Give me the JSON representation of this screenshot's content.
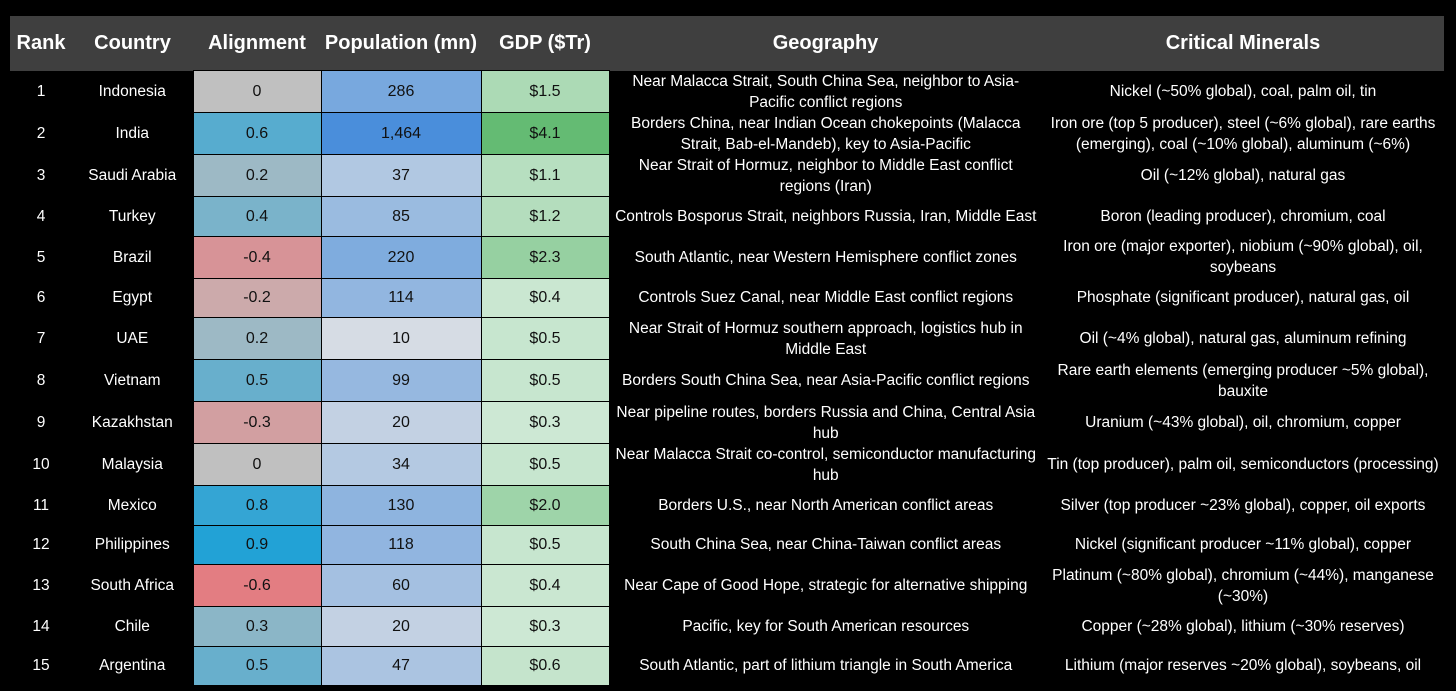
{
  "headers": {
    "rank": "Rank",
    "country": "Country",
    "alignment": "Alignment",
    "population": "Population (mn)",
    "gdp": "GDP ($Tr)",
    "geography": "Geography",
    "minerals": "Critical Minerals"
  },
  "rows": [
    {
      "rank": "1",
      "country": "Indonesia",
      "alignment": "0",
      "population": "286",
      "gdp": "$1.5",
      "geography": "Near Malacca Strait, South China Sea, neighbor to Asia-Pacific conflict regions",
      "minerals": "Nickel (~50% global), coal, palm oil, tin",
      "alignment_value": 0,
      "population_value": 286,
      "gdp_value": 1.5
    },
    {
      "rank": "2",
      "country": "India",
      "alignment": "0.6",
      "population": "1,464",
      "gdp": "$4.1",
      "geography": "Borders China, near Indian Ocean chokepoints (Malacca Strait, Bab-el-Mandeb), key to Asia-Pacific",
      "minerals": "Iron ore (top 5 producer), steel (~6% global), rare earths (emerging), coal (~10% global), aluminum (~6%)",
      "alignment_value": 0.6,
      "population_value": 1464,
      "gdp_value": 4.1
    },
    {
      "rank": "3",
      "country": "Saudi Arabia",
      "alignment": "0.2",
      "population": "37",
      "gdp": "$1.1",
      "geography": "Near Strait of Hormuz, neighbor to Middle East conflict regions (Iran)",
      "minerals": "Oil (~12% global), natural gas",
      "alignment_value": 0.2,
      "population_value": 37,
      "gdp_value": 1.1
    },
    {
      "rank": "4",
      "country": "Turkey",
      "alignment": "0.4",
      "population": "85",
      "gdp": "$1.2",
      "geography": "Controls Bosporus Strait, neighbors Russia, Iran, Middle East",
      "minerals": "Boron (leading producer), chromium, coal",
      "alignment_value": 0.4,
      "population_value": 85,
      "gdp_value": 1.2
    },
    {
      "rank": "5",
      "country": "Brazil",
      "alignment": "-0.4",
      "population": "220",
      "gdp": "$2.3",
      "geography": "South Atlantic, near Western Hemisphere conflict zones",
      "minerals": "Iron ore (major exporter), niobium (~90% global), oil, soybeans",
      "alignment_value": -0.4,
      "population_value": 220,
      "gdp_value": 2.3
    },
    {
      "rank": "6",
      "country": "Egypt",
      "alignment": "-0.2",
      "population": "114",
      "gdp": "$0.4",
      "geography": "Controls Suez Canal, near Middle East conflict regions",
      "minerals": "Phosphate (significant producer), natural gas, oil",
      "alignment_value": -0.2,
      "population_value": 114,
      "gdp_value": 0.4
    },
    {
      "rank": "7",
      "country": "UAE",
      "alignment": "0.2",
      "population": "10",
      "gdp": "$0.5",
      "geography": "Near Strait of Hormuz southern approach, logistics hub in Middle East",
      "minerals": "Oil (~4% global), natural gas, aluminum refining",
      "alignment_value": 0.2,
      "population_value": 10,
      "gdp_value": 0.5
    },
    {
      "rank": "8",
      "country": "Vietnam",
      "alignment": "0.5",
      "population": "99",
      "gdp": "$0.5",
      "geography": "Borders South China Sea, near Asia-Pacific conflict regions",
      "minerals": "Rare earth elements (emerging producer ~5% global), bauxite",
      "alignment_value": 0.5,
      "population_value": 99,
      "gdp_value": 0.5
    },
    {
      "rank": "9",
      "country": "Kazakhstan",
      "alignment": "-0.3",
      "population": "20",
      "gdp": "$0.3",
      "geography": "Near pipeline routes, borders Russia and China, Central Asia hub",
      "minerals": "Uranium (~43% global), oil, chromium, copper",
      "alignment_value": -0.3,
      "population_value": 20,
      "gdp_value": 0.3
    },
    {
      "rank": "10",
      "country": "Malaysia",
      "alignment": "0",
      "population": "34",
      "gdp": "$0.5",
      "geography": "Near Malacca Strait co-control, semiconductor manufacturing hub",
      "minerals": "Tin (top producer), palm oil, semiconductors (processing)",
      "alignment_value": 0,
      "population_value": 34,
      "gdp_value": 0.5
    },
    {
      "rank": "11",
      "country": "Mexico",
      "alignment": "0.8",
      "population": "130",
      "gdp": "$2.0",
      "geography": "Borders U.S., near North American conflict areas",
      "minerals": "Silver (top producer ~23% global), copper, oil exports",
      "alignment_value": 0.8,
      "population_value": 130,
      "gdp_value": 2.0
    },
    {
      "rank": "12",
      "country": "Philippines",
      "alignment": "0.9",
      "population": "118",
      "gdp": "$0.5",
      "geography": "South China Sea, near China-Taiwan conflict areas",
      "minerals": "Nickel (significant producer ~11% global), copper",
      "alignment_value": 0.9,
      "population_value": 118,
      "gdp_value": 0.5
    },
    {
      "rank": "13",
      "country": "South Africa",
      "alignment": "-0.6",
      "population": "60",
      "gdp": "$0.4",
      "geography": "Near Cape of Good Hope, strategic for alternative shipping",
      "minerals": "Platinum (~80% global), chromium (~44%), manganese (~30%)",
      "alignment_value": -0.6,
      "population_value": 60,
      "gdp_value": 0.4
    },
    {
      "rank": "14",
      "country": "Chile",
      "alignment": "0.3",
      "population": "20",
      "gdp": "$0.3",
      "geography": "Pacific, key for South American resources",
      "minerals": "Copper (~28% global), lithium (~30% reserves)",
      "alignment_value": 0.3,
      "population_value": 20,
      "gdp_value": 0.3
    },
    {
      "rank": "15",
      "country": "Argentina",
      "alignment": "0.5",
      "population": "47",
      "gdp": "$0.6",
      "geography": "South Atlantic, part of lithium triangle in South America",
      "minerals": "Lithium (major reserves ~20% global), soybeans, oil",
      "alignment_value": 0.5,
      "population_value": 47,
      "gdp_value": 0.6
    }
  ],
  "colors": {
    "header_bg": "#3f3f3f",
    "alignment_neutral": "#c0c0c0",
    "alignment_positive": "#22a2d6",
    "alignment_negative": "#e37d82",
    "population_high": "#4a8edb",
    "population_low": "#d6dce4",
    "gdp_high": "#64bb73",
    "gdp_low": "#cde8d4"
  }
}
